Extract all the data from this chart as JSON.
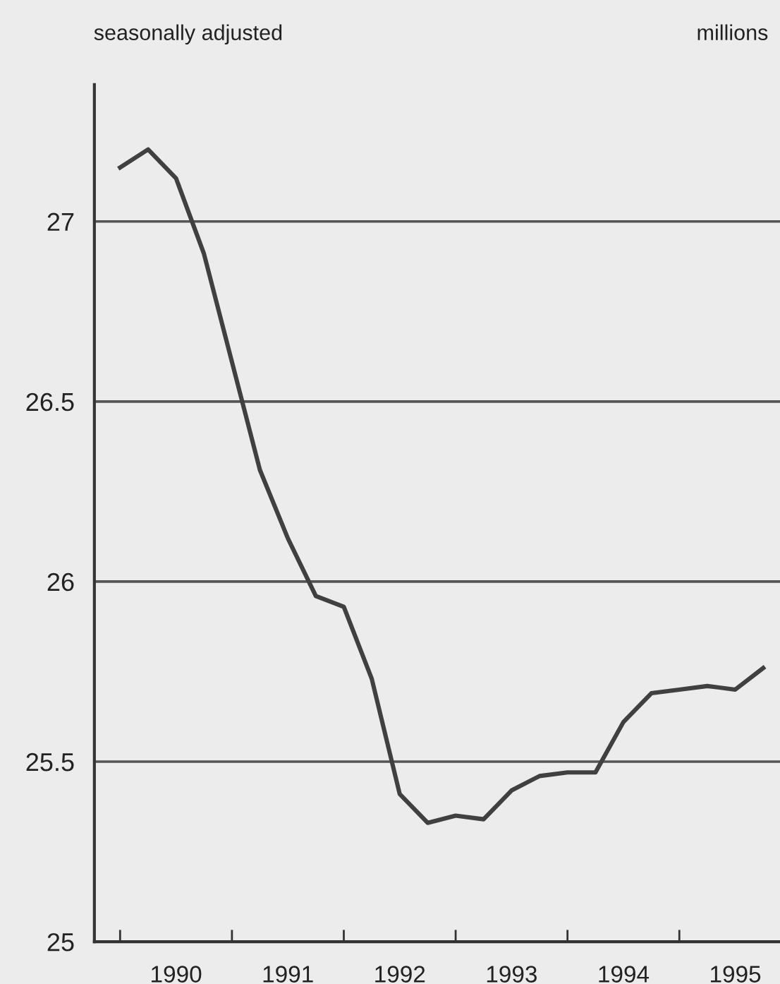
{
  "chart_data": {
    "type": "line",
    "annotations": [
      "seasonally adjusted",
      "millions"
    ],
    "x": [
      1990.0,
      1990.25,
      1990.5,
      1990.75,
      1991.0,
      1991.25,
      1991.5,
      1991.75,
      1992.0,
      1992.25,
      1992.5,
      1992.75,
      1993.0,
      1993.25,
      1993.5,
      1993.75,
      1994.0,
      1994.25,
      1994.5,
      1994.75,
      1995.0,
      1995.25,
      1995.5,
      1995.75
    ],
    "series": [
      {
        "color": "#404040",
        "values": [
          27.15,
          27.2,
          27.12,
          26.91,
          26.61,
          26.31,
          26.12,
          25.96,
          25.93,
          25.73,
          25.41,
          25.33,
          25.35,
          25.34,
          25.42,
          25.46,
          25.47,
          25.47,
          25.61,
          25.69,
          25.7,
          25.71,
          25.7,
          25.76
        ]
      }
    ],
    "xlim": [
      1989.77,
      1995.9
    ],
    "xticks": [
      {
        "value": 1990,
        "label": null
      },
      {
        "value": 1990.5,
        "label": "1990"
      },
      {
        "value": 1991,
        "label": null
      },
      {
        "value": 1991.5,
        "label": "1991"
      },
      {
        "value": 1992,
        "label": null
      },
      {
        "value": 1992.5,
        "label": "1992"
      },
      {
        "value": 1993,
        "label": null
      },
      {
        "value": 1993.5,
        "label": "1993"
      },
      {
        "value": 1994,
        "label": null
      },
      {
        "value": 1994.5,
        "label": "1994"
      },
      {
        "value": 1995,
        "label": null
      },
      {
        "value": 1995.5,
        "label": "1995"
      }
    ],
    "ylim": [
      25,
      27.38
    ],
    "yticks": [
      25,
      25.5,
      26,
      26.5,
      27
    ],
    "grid": "y",
    "legend": false,
    "marker": "none",
    "line_style": "solid"
  }
}
